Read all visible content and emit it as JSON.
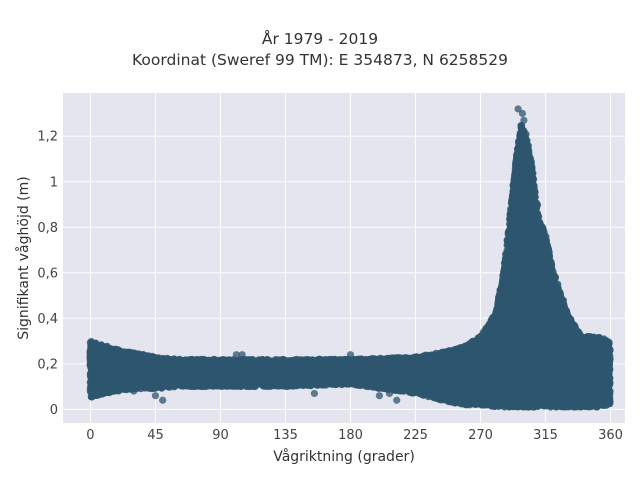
{
  "chart_data": {
    "type": "scatter",
    "title": "År 1979 - 2019",
    "subtitle": "Koordinat (Sweref 99 TM): E 354873, N 6258529",
    "xlabel": "Vågriktning (grader)",
    "ylabel": "Signifikant våghöjd (m)",
    "xlim": [
      -19,
      370
    ],
    "ylim": [
      -0.06,
      1.39
    ],
    "xticks": [
      0,
      45,
      90,
      135,
      180,
      225,
      270,
      315,
      360
    ],
    "xtick_labels": [
      "0",
      "45",
      "90",
      "135",
      "180",
      "225",
      "270",
      "315",
      "360"
    ],
    "yticks": [
      0,
      0.2,
      0.4,
      0.6,
      0.8,
      1.0,
      1.2
    ],
    "ytick_labels": [
      "0",
      "0,2",
      "0,4",
      "0,6",
      "0,8",
      "1",
      "1,2"
    ],
    "grid": true,
    "marker_color": "#2e566e",
    "density_envelope": {
      "x": [
        0,
        5,
        10,
        20,
        30,
        45,
        60,
        90,
        135,
        180,
        225,
        250,
        260,
        270,
        275,
        280,
        285,
        288,
        292,
        295,
        298,
        302,
        306,
        310,
        315,
        320,
        330,
        340,
        350,
        360
      ],
      "y_min": [
        0.05,
        0.06,
        0.07,
        0.08,
        0.09,
        0.09,
        0.1,
        0.1,
        0.1,
        0.11,
        0.07,
        0.03,
        0.02,
        0.02,
        0.01,
        0.01,
        0.01,
        0.01,
        0.01,
        0.01,
        0.01,
        0.01,
        0.01,
        0.01,
        0.01,
        0.01,
        0.01,
        0.01,
        0.01,
        0.02
      ],
      "y_max": [
        0.3,
        0.29,
        0.28,
        0.26,
        0.25,
        0.23,
        0.22,
        0.22,
        0.22,
        0.22,
        0.23,
        0.26,
        0.28,
        0.32,
        0.37,
        0.42,
        0.56,
        0.72,
        0.95,
        1.12,
        1.25,
        1.2,
        1.05,
        0.85,
        0.76,
        0.62,
        0.42,
        0.32,
        0.32,
        0.3
      ]
    },
    "outliers": [
      {
        "x": 45,
        "y": 0.06
      },
      {
        "x": 50,
        "y": 0.04
      },
      {
        "x": 30,
        "y": 0.08
      },
      {
        "x": 200,
        "y": 0.06
      },
      {
        "x": 212,
        "y": 0.04
      },
      {
        "x": 207,
        "y": 0.07
      },
      {
        "x": 155,
        "y": 0.07
      },
      {
        "x": 246,
        "y": 0.04
      },
      {
        "x": 101,
        "y": 0.24
      },
      {
        "x": 105,
        "y": 0.24
      },
      {
        "x": 180,
        "y": 0.24
      },
      {
        "x": 296,
        "y": 1.32
      },
      {
        "x": 299,
        "y": 1.3
      },
      {
        "x": 300,
        "y": 1.27
      }
    ]
  }
}
